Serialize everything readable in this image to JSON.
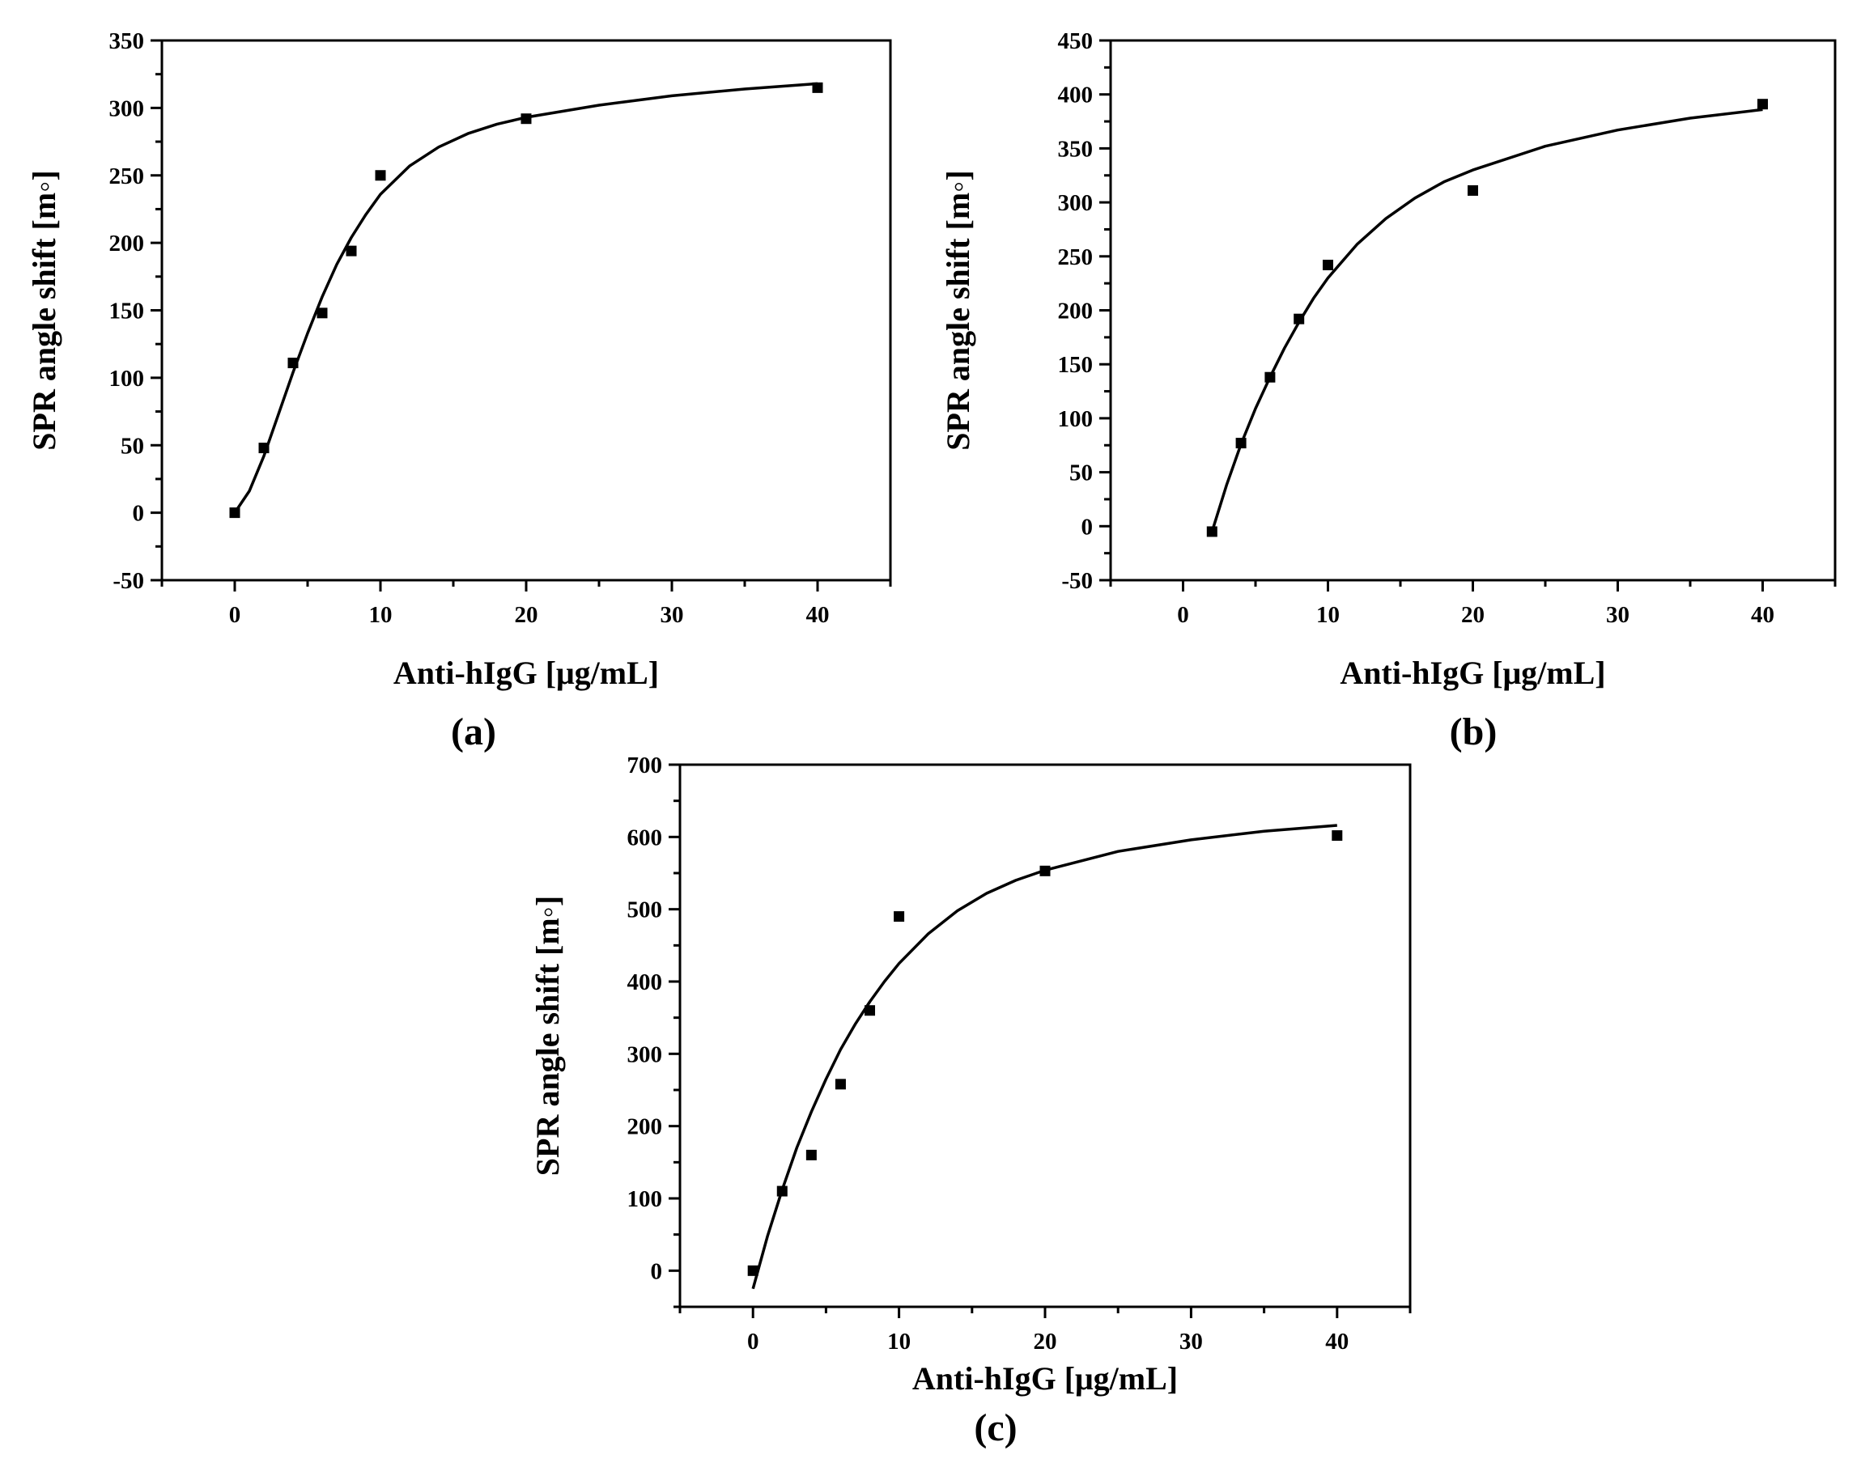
{
  "chart_data": [
    {
      "type": "scatter",
      "panel_label": "(a)",
      "xlabel": "Anti-hIgG [μg/mL]",
      "ylabel": "SPR angle shift [m◦]",
      "xlim": [
        -5,
        45
      ],
      "ylim": [
        -50,
        350
      ],
      "xticks": [
        0,
        10,
        20,
        30,
        40
      ],
      "yticks": [
        -50,
        0,
        50,
        100,
        150,
        200,
        250,
        300,
        350
      ],
      "x": [
        0,
        2,
        4,
        6,
        8,
        10,
        20,
        40
      ],
      "y": [
        0,
        48,
        111,
        148,
        194,
        250,
        292,
        315
      ],
      "fit": {
        "x": [
          0,
          1,
          2,
          3,
          4,
          5,
          6,
          7,
          8,
          9,
          10,
          12,
          14,
          16,
          18,
          20,
          25,
          30,
          35,
          40
        ],
        "y": [
          0,
          16,
          42,
          73,
          104,
          133,
          160,
          184,
          204,
          221,
          236,
          257,
          271,
          281,
          288,
          293,
          302,
          309,
          314,
          318
        ]
      },
      "grid": false,
      "marker": "square"
    },
    {
      "type": "scatter",
      "panel_label": "(b)",
      "xlabel": "Anti-hIgG [μg/mL]",
      "ylabel": "SPR angle shift [m◦]",
      "xlim": [
        -5,
        45
      ],
      "ylim": [
        -50,
        450
      ],
      "xticks": [
        0,
        10,
        20,
        30,
        40
      ],
      "yticks": [
        -50,
        0,
        50,
        100,
        150,
        200,
        250,
        300,
        350,
        400,
        450
      ],
      "x": [
        2,
        4,
        6,
        8,
        10,
        20,
        40
      ],
      "y": [
        -5,
        77,
        138,
        192,
        242,
        311,
        391
      ],
      "fit": {
        "x": [
          2,
          3,
          4,
          5,
          6,
          7,
          8,
          9,
          10,
          12,
          14,
          16,
          18,
          20,
          25,
          30,
          35,
          40
        ],
        "y": [
          -5,
          38,
          76,
          109,
          138,
          165,
          189,
          211,
          230,
          261,
          285,
          304,
          319,
          330,
          352,
          367,
          378,
          386
        ]
      },
      "grid": false,
      "marker": "square"
    },
    {
      "type": "scatter",
      "panel_label": "(c)",
      "xlabel": "Anti-hIgG [μg/mL]",
      "ylabel": "SPR angle shift [m◦]",
      "xlim": [
        -5,
        45
      ],
      "ylim": [
        -50,
        700
      ],
      "xticks": [
        0,
        10,
        20,
        30,
        40
      ],
      "yticks": [
        0,
        100,
        200,
        300,
        400,
        500,
        600,
        700
      ],
      "x": [
        0,
        2,
        4,
        6,
        8,
        10,
        20,
        40
      ],
      "y": [
        0,
        110,
        160,
        258,
        360,
        490,
        553,
        602
      ],
      "fit": {
        "x": [
          0,
          1,
          2,
          3,
          4,
          5,
          6,
          7,
          8,
          9,
          10,
          12,
          14,
          16,
          18,
          20,
          25,
          30,
          35,
          40
        ],
        "y": [
          -25,
          48,
          112,
          170,
          220,
          265,
          306,
          341,
          372,
          400,
          425,
          466,
          498,
          522,
          540,
          554,
          580,
          596,
          608,
          616
        ]
      },
      "grid": false,
      "marker": "square"
    }
  ]
}
